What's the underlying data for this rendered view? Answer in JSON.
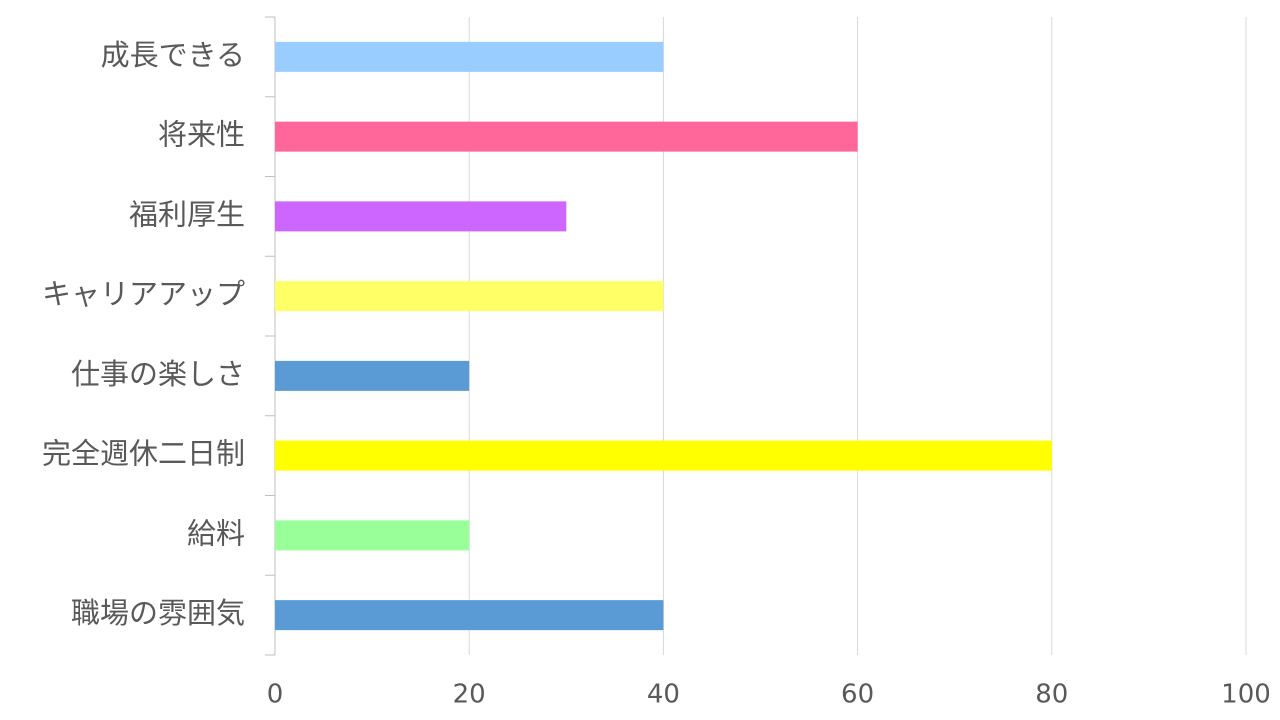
{
  "chart_data": {
    "type": "bar",
    "orientation": "horizontal",
    "categories": [
      "成長できる",
      "将来性",
      "福利厚生",
      "キャリアアップ",
      "仕事の楽しさ",
      "完全週休二日制",
      "給料",
      "職場の雰囲気"
    ],
    "values": [
      40,
      60,
      30,
      40,
      20,
      80,
      20,
      40
    ],
    "colors": [
      "#99ccff",
      "#ff6699",
      "#cc66ff",
      "#ffff66",
      "#5b9bd5",
      "#ffff00",
      "#99ff99",
      "#5b9bd5"
    ],
    "xlim": [
      0,
      100
    ],
    "xticks": [
      0,
      20,
      40,
      60,
      80,
      100
    ],
    "grid": true
  }
}
